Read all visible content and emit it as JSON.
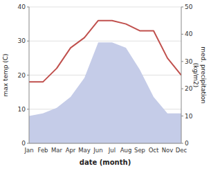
{
  "chart_data": {
    "type": "line",
    "categories": [
      "Jan",
      "Feb",
      "Mar",
      "Apr",
      "May",
      "Jun",
      "Jul",
      "Aug",
      "Sep",
      "Oct",
      "Nov",
      "Dec"
    ],
    "series": [
      {
        "type": "area",
        "axis": "y2",
        "color": "#c5cce8",
        "values": [
          10,
          11,
          13,
          17,
          24,
          37,
          37,
          35,
          27,
          17,
          11,
          11
        ]
      },
      {
        "type": "line",
        "color": "#c0504d",
        "values": [
          18,
          18,
          22,
          28,
          31,
          36,
          36,
          35,
          33,
          33,
          25,
          20
        ]
      }
    ],
    "xlabel": "date (month)",
    "ylabel": "max temp (C)",
    "y2label": "med. precipitation\n(kg/m2)",
    "ylim": [
      0,
      40
    ],
    "yticks": [
      0,
      10,
      20,
      30,
      40
    ],
    "y2lim": [
      0,
      50
    ],
    "y2ticks": [
      0,
      10,
      20,
      30,
      40,
      50
    ],
    "grid": true
  }
}
